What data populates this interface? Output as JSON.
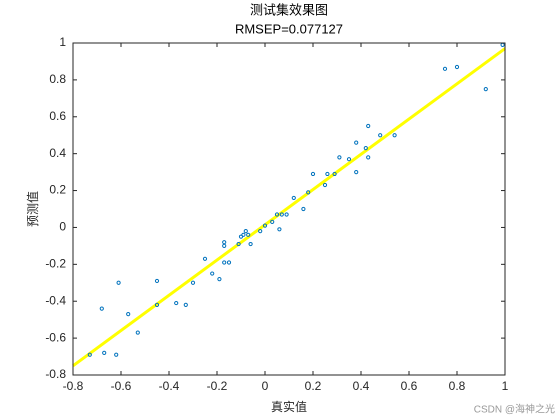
{
  "chart_data": {
    "type": "scatter",
    "title": "测试集效果图",
    "subtitle": "RMSEP=0.077127",
    "x_label": "真实值",
    "y_label": "预测值",
    "watermark": "CSDN @海神之光",
    "xlim": [
      -0.8,
      1
    ],
    "ylim": [
      -0.8,
      1
    ],
    "xticks": [
      -0.8,
      -0.6,
      -0.4,
      -0.2,
      0,
      0.2,
      0.4,
      0.6,
      0.8,
      1
    ],
    "yticks": [
      -0.8,
      -0.6,
      -0.4,
      -0.2,
      0,
      0.2,
      0.4,
      0.6,
      0.8,
      1
    ],
    "series": [
      {
        "type": "scatter",
        "color": "#0072bd",
        "x": [
          -0.73,
          -0.67,
          -0.62,
          -0.68,
          -0.61,
          -0.57,
          -0.53,
          -0.45,
          -0.45,
          -0.37,
          -0.33,
          -0.3,
          -0.25,
          -0.22,
          -0.19,
          -0.17,
          -0.17,
          -0.15,
          -0.17,
          -0.11,
          -0.1,
          -0.09,
          -0.08,
          -0.07,
          -0.06,
          -0.02,
          0.0,
          0.03,
          0.05,
          0.07,
          0.06,
          0.09,
          0.12,
          0.16,
          0.18,
          0.2,
          0.25,
          0.26,
          0.29,
          0.31,
          0.35,
          0.38,
          0.38,
          0.42,
          0.43,
          0.43,
          0.48,
          0.54,
          0.75,
          0.8,
          0.92,
          0.99
        ],
        "values": [
          -0.69,
          -0.68,
          -0.69,
          -0.44,
          -0.3,
          -0.47,
          -0.57,
          -0.42,
          -0.29,
          -0.41,
          -0.42,
          -0.3,
          -0.17,
          -0.25,
          -0.28,
          -0.08,
          -0.1,
          -0.19,
          -0.19,
          -0.09,
          -0.05,
          -0.04,
          -0.02,
          -0.04,
          -0.09,
          -0.02,
          0.01,
          0.03,
          0.07,
          0.07,
          -0.01,
          0.07,
          0.16,
          0.1,
          0.19,
          0.29,
          0.23,
          0.29,
          0.29,
          0.38,
          0.37,
          0.3,
          0.46,
          0.43,
          0.38,
          0.55,
          0.5,
          0.5,
          0.86,
          0.87,
          0.75,
          0.99
        ]
      },
      {
        "type": "line",
        "color": "#ffff00",
        "x": [
          -0.8,
          1
        ],
        "values": [
          -0.75,
          0.97
        ]
      }
    ]
  }
}
